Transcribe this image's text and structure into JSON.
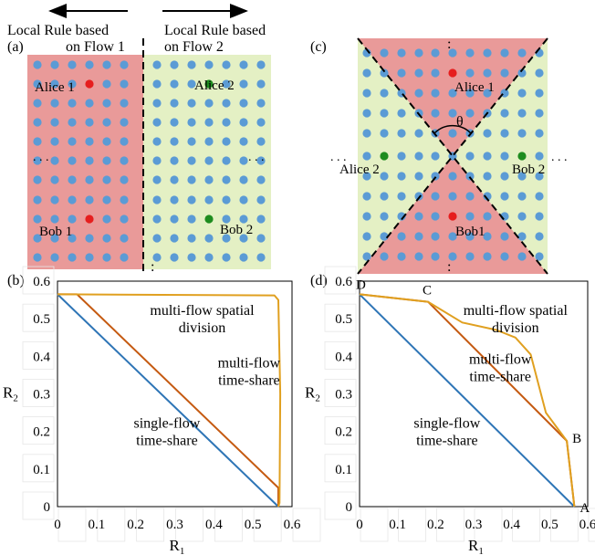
{
  "panel_a": {
    "label": "(a)",
    "left_caption_1": "Local Rule based",
    "left_caption_2": "on Flow 1",
    "right_caption_1": "Local Rule based",
    "right_caption_2": "on Flow 2",
    "alice1": "Alice 1",
    "alice2": "Alice 2",
    "bob1": "Bob 1",
    "bob2": "Bob 2",
    "ellipsis": ". . .",
    "vdots": ":"
  },
  "panel_c": {
    "label": "(c)",
    "alice1": "Alice 1",
    "alice2": "Alice 2",
    "bob1": "Bob1",
    "bob2": "Bob 2",
    "theta": "θ",
    "ellipsis": ". . .",
    "vdots": ":"
  },
  "colors": {
    "red_region": "#e99a99",
    "green_region": "#e4f0c4",
    "node": "#5b9bd5",
    "alice_bob_flow1": "#e61e1e",
    "alice_bob_flow2": "#1e8c1e",
    "single_flow": "#2e75b6",
    "time_share": "#c55a11",
    "spatial": "#e0a020"
  },
  "chart_data": [
    {
      "panel": "(b)",
      "type": "line",
      "xlabel": "R",
      "xlabel_sub": "1",
      "ylabel": "R",
      "ylabel_sub": "2",
      "xlim": [
        0,
        0.6
      ],
      "ylim": [
        0,
        0.6
      ],
      "xticks": [
        "0",
        "0.1",
        "0.2",
        "0.3",
        "0.4",
        "0.5",
        "0.6"
      ],
      "yticks": [
        "0",
        "0.1",
        "0.2",
        "0.3",
        "0.4",
        "0.5",
        "0.6"
      ],
      "xtick_values": [
        0,
        0.1,
        0.2,
        0.3,
        0.4,
        0.5,
        0.6
      ],
      "ytick_values": [
        0,
        0.1,
        0.2,
        0.3,
        0.4,
        0.5,
        0.6
      ],
      "series": [
        {
          "color": "#2e75b6",
          "points": [
            [
              0,
              0.565
            ],
            [
              0.565,
              0
            ]
          ]
        },
        {
          "color": "#c55a11",
          "points": [
            [
              0,
              0.565
            ],
            [
              0.05,
              0.565
            ],
            [
              0.565,
              0.05
            ],
            [
              0.565,
              0
            ]
          ]
        },
        {
          "color": "#e0a020",
          "points": [
            [
              0,
              0.565
            ],
            [
              0.555,
              0.562
            ],
            [
              0.565,
              0.55
            ],
            [
              0.57,
              0.3
            ],
            [
              0.568,
              0.01
            ],
            [
              0.565,
              0
            ]
          ]
        }
      ],
      "annotations": [
        {
          "lines": [
            "multi-flow spatial",
            "division"
          ],
          "x": 0.37,
          "y": 0.51
        },
        {
          "lines": [
            "multi-flow",
            "time-share"
          ],
          "x": 0.49,
          "y": 0.37
        },
        {
          "lines": [
            "single-flow",
            "time-share"
          ],
          "x": 0.28,
          "y": 0.21
        }
      ]
    },
    {
      "panel": "(d)",
      "type": "line",
      "xlabel": "R",
      "xlabel_sub": "1",
      "ylabel": "R",
      "ylabel_sub": "2",
      "xlim": [
        0,
        0.6
      ],
      "ylim": [
        0,
        0.6
      ],
      "xticks": [
        "0",
        "0.1",
        "0.2",
        "0.3",
        "0.4",
        "0.5",
        "0.6"
      ],
      "yticks": [
        "0",
        "0.1",
        "0.2",
        "0.3",
        "0.4",
        "0.5",
        "0.6"
      ],
      "xtick_values": [
        0,
        0.1,
        0.2,
        0.3,
        0.4,
        0.5,
        0.6
      ],
      "ytick_values": [
        0,
        0.1,
        0.2,
        0.3,
        0.4,
        0.5,
        0.6
      ],
      "series": [
        {
          "color": "#2e75b6",
          "points": [
            [
              0,
              0.565
            ],
            [
              0.565,
              0
            ]
          ]
        },
        {
          "color": "#c55a11",
          "points": [
            [
              0,
              0.565
            ],
            [
              0.18,
              0.545
            ],
            [
              0.545,
              0.175
            ],
            [
              0.565,
              0
            ]
          ]
        },
        {
          "color": "#e0a020",
          "points": [
            [
              0,
              0.565
            ],
            [
              0.18,
              0.545
            ],
            [
              0.27,
              0.49
            ],
            [
              0.36,
              0.47
            ],
            [
              0.41,
              0.45
            ],
            [
              0.45,
              0.405
            ],
            [
              0.49,
              0.25
            ],
            [
              0.545,
              0.175
            ],
            [
              0.565,
              0
            ]
          ]
        }
      ],
      "annotations": [
        {
          "lines": [
            "multi-flow spatial",
            "division"
          ],
          "x": 0.41,
          "y": 0.51
        },
        {
          "lines": [
            "multi-flow",
            "time-share"
          ],
          "x": 0.37,
          "y": 0.38
        },
        {
          "lines": [
            "single-flow",
            "time-share"
          ],
          "x": 0.23,
          "y": 0.21
        }
      ],
      "points": [
        {
          "label": "D",
          "x": 0,
          "y": 0.565
        },
        {
          "label": "C",
          "x": 0.18,
          "y": 0.545
        },
        {
          "label": "B",
          "x": 0.545,
          "y": 0.175
        },
        {
          "label": "A",
          "x": 0.565,
          "y": 0
        }
      ]
    }
  ]
}
